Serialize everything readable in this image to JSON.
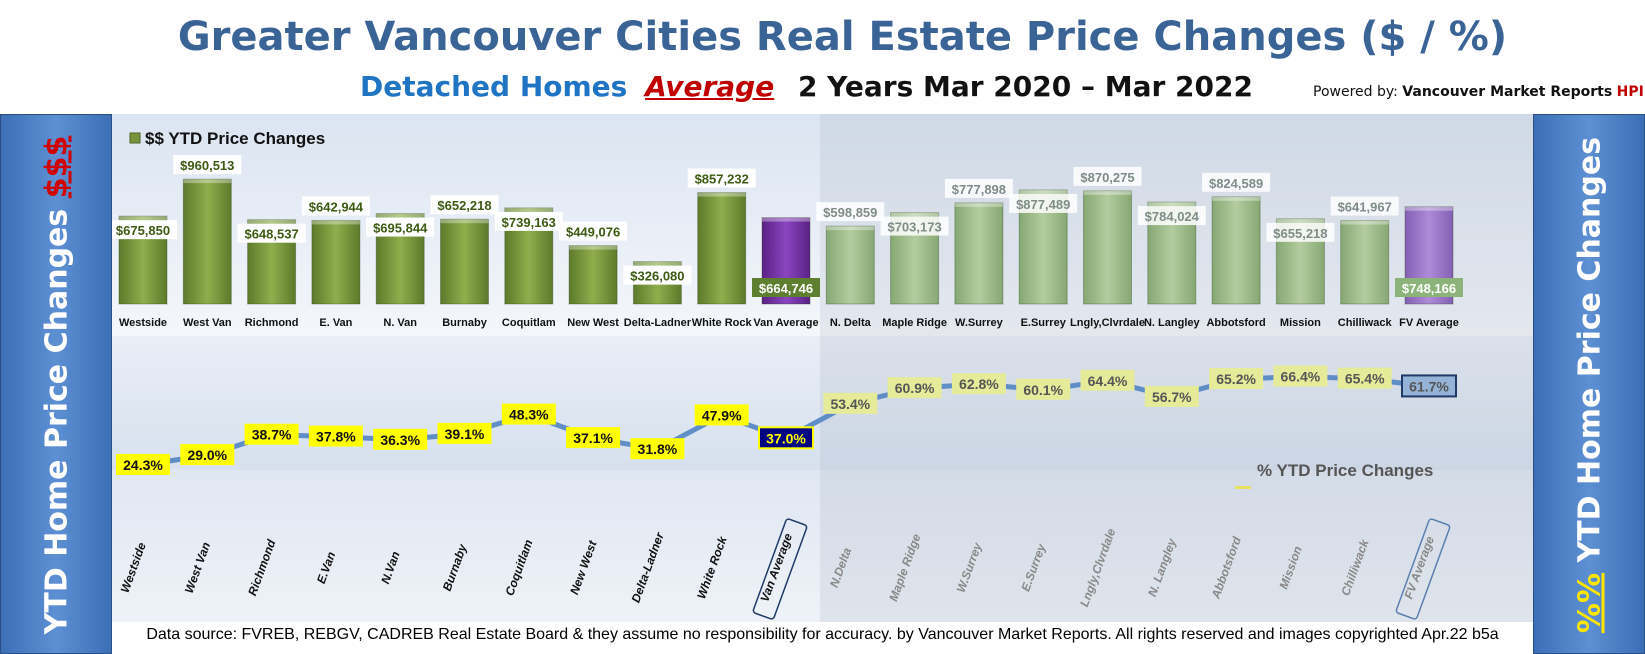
{
  "header": {
    "title": "Greater Vancouver Cities Real Estate Price Changes ($ / %)",
    "subtitle_part1": "Detached Homes",
    "subtitle_part2": "Average",
    "subtitle_part3": "2 Years Mar 2020 – Mar 2022",
    "powered_prefix": "Powered by:",
    "powered_brand": "Vancouver Market Reports",
    "powered_hp": "HPIp"
  },
  "sidebar": {
    "left_text": "YTD Home Price Changes",
    "left_highlight": "$$$",
    "right_highlight": "%%",
    "right_text": "YTD Home Price  Changes"
  },
  "footer": "Data source: FVREB, REBGV, CADREB Real Estate Board & they assume no responsibility for accuracy. by Vancouver Market Reports. All rights reserved and  images copyrighted Apr.22 b5a",
  "colors": {
    "van_bar": "#77933c",
    "fv_bar": "#9bbb84",
    "avg_bar": "#7030a0",
    "fv_avg_bar": "#9a70c8",
    "line": "#4a7fc0",
    "label_yellow": "#ffff00",
    "avg_label": "#000080"
  },
  "chart_data": [
    {
      "type": "bar",
      "title": "$$ YTD Price Changes",
      "categories": [
        "Westside",
        "West Van",
        "Richmond",
        "E. Van",
        "N. Van",
        "Burnaby",
        "Coquitlam",
        "New West",
        "Delta-Ladner",
        "White Rock",
        "Van Average",
        "N. Delta",
        "Maple Ridge",
        "W.Surrey",
        "E.Surrey",
        "Lngly,Clvrdale",
        "N. Langley",
        "Abbotsford",
        "Mission",
        "Chilliwack",
        "FV Average"
      ],
      "values": [
        675850,
        960513,
        648537,
        642944,
        695844,
        652218,
        739163,
        449076,
        326080,
        857232,
        664746,
        598859,
        703173,
        777898,
        877489,
        870275,
        784024,
        824589,
        655218,
        641967,
        748166
      ],
      "value_labels": [
        "$675,850",
        "$960,513",
        "$648,537",
        "$642,944",
        "$695,844",
        "$652,218",
        "$739,163",
        "$449,076",
        "$326,080",
        "$857,232",
        "$664,746",
        "$598,859",
        "$703,173",
        "$777,898",
        "$877,489",
        "$870,275",
        "$784,024",
        "$824,589",
        "$655,218",
        "$641,967",
        "$748,166"
      ],
      "groups": [
        "van",
        "van",
        "van",
        "van",
        "van",
        "van",
        "van",
        "van",
        "van",
        "van",
        "van-avg",
        "fv",
        "fv",
        "fv",
        "fv",
        "fv",
        "fv",
        "fv",
        "fv",
        "fv",
        "fv-avg"
      ],
      "ylim": [
        0,
        1000000
      ]
    },
    {
      "type": "line",
      "title": "% YTD Price Changes",
      "categories": [
        "Westside",
        "West Van",
        "Richmond",
        "E.Van",
        "N.Van",
        "Burnaby",
        "Coquitlam",
        "New West",
        "Delta-Ladner",
        "White Rock",
        "Van Average",
        "N.Delta",
        "Maple Ridge",
        "W.Surrey",
        "E.Surrey",
        "Lngly,Clvrdale",
        "N. Langley",
        "Abbotsford",
        "Mission",
        "Chilliwack",
        "FV Average"
      ],
      "values": [
        24.3,
        29.0,
        38.7,
        37.8,
        36.3,
        39.1,
        48.3,
        37.1,
        31.8,
        47.9,
        37.0,
        53.4,
        60.9,
        62.8,
        60.1,
        64.4,
        56.7,
        65.2,
        66.4,
        65.4,
        61.7
      ],
      "value_labels": [
        "24.3%",
        "29.0%",
        "38.7%",
        "37.8%",
        "36.3%",
        "39.1%",
        "48.3%",
        "37.1%",
        "31.8%",
        "47.9%",
        "37.0%",
        "53.4%",
        "60.9%",
        "62.8%",
        "60.1%",
        "64.4%",
        "56.7%",
        "65.2%",
        "66.4%",
        "65.4%",
        "61.7%"
      ],
      "ylim": [
        20,
        70
      ]
    }
  ]
}
